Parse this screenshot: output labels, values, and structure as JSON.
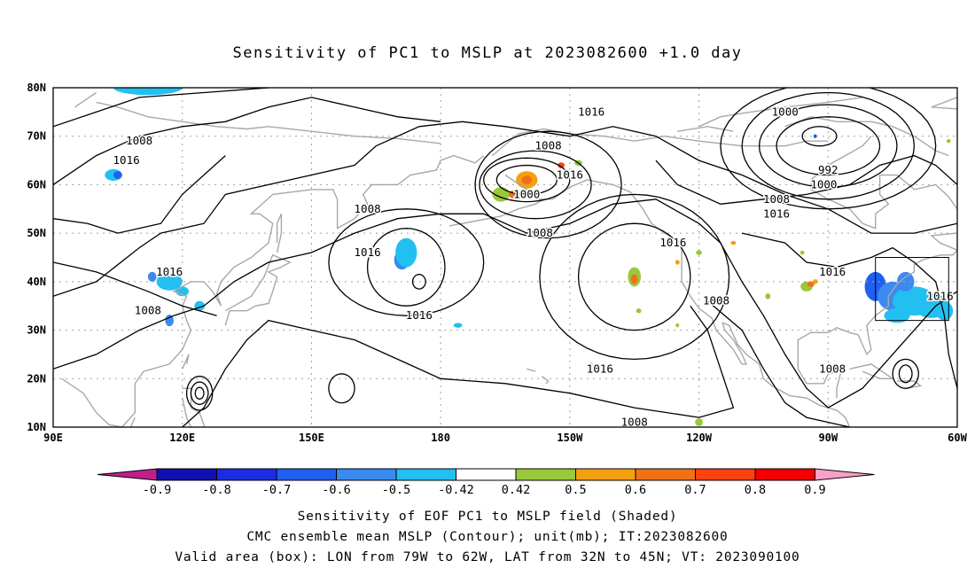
{
  "title": "Sensitivity of PC1 to MSLP at 2023082600 +1.0 day",
  "colors": {
    "background": "#ffffff",
    "coastline": "#a8a8a8",
    "contour": "#000000",
    "grid": "#a0a0a0"
  },
  "chart_data": {
    "type": "heatmap",
    "projection": "cylindrical equidistant",
    "lon_range": [
      "90E",
      "60W"
    ],
    "lat_range": [
      "10N",
      "80N"
    ],
    "grid": true,
    "x_ticks": [
      "90E",
      "120E",
      "150E",
      "180",
      "150W",
      "120W",
      "90W",
      "60W"
    ],
    "y_ticks": [
      "10N",
      "20N",
      "30N",
      "40N",
      "50N",
      "60N",
      "70N",
      "80N"
    ],
    "contour_variable": "MSLP",
    "contour_unit": "mb",
    "contour_labels": [
      {
        "value": "1016",
        "lon": -145,
        "lat": 75
      },
      {
        "value": "1000",
        "lon": -100,
        "lat": 75
      },
      {
        "value": "1008",
        "lon": 110,
        "lat": 69
      },
      {
        "value": "1008",
        "lon": -155,
        "lat": 68
      },
      {
        "value": "1016",
        "lon": 107,
        "lat": 65
      },
      {
        "value": "992",
        "lon": -90,
        "lat": 63
      },
      {
        "value": "1016",
        "lon": -150,
        "lat": 62
      },
      {
        "value": "1000",
        "lon": -91,
        "lat": 60
      },
      {
        "value": "1000",
        "lon": -160,
        "lat": 58
      },
      {
        "value": "1008",
        "lon": -102,
        "lat": 57
      },
      {
        "value": "1016",
        "lon": -102,
        "lat": 54
      },
      {
        "value": "1008",
        "lon": 163,
        "lat": 55
      },
      {
        "value": "1008",
        "lon": -157,
        "lat": 50
      },
      {
        "value": "1016",
        "lon": -126,
        "lat": 48
      },
      {
        "value": "1016",
        "lon": 163,
        "lat": 46
      },
      {
        "value": "1016",
        "lon": 117,
        "lat": 42
      },
      {
        "value": "1016",
        "lon": -89,
        "lat": 42
      },
      {
        "value": "1016",
        "lon": -64,
        "lat": 37
      },
      {
        "value": "1008",
        "lon": -116,
        "lat": 36
      },
      {
        "value": "1008",
        "lon": 112,
        "lat": 34
      },
      {
        "value": "1016",
        "lon": 175,
        "lat": 33
      },
      {
        "value": "1016",
        "lon": -143,
        "lat": 22
      },
      {
        "value": "1008",
        "lon": -89,
        "lat": 22
      },
      {
        "value": "1008",
        "lon": -135,
        "lat": 11
      }
    ],
    "validation_box": {
      "lon": [
        -79,
        -62
      ],
      "lat": [
        32,
        45
      ]
    },
    "colorbar": {
      "labels": [
        "-0.9",
        "-0.8",
        "-0.7",
        "-0.6",
        "-0.5",
        "-0.42",
        "0.42",
        "0.5",
        "0.6",
        "0.7",
        "0.8",
        "0.9"
      ],
      "colors": [
        "#1010b0",
        "#1a2ee0",
        "#2060f0",
        "#3a8af0",
        "#22c0f0",
        "#ffffff",
        "#99c83a",
        "#f5a010",
        "#f07018",
        "#ff4010",
        "#f00000"
      ],
      "low_extend_color": "#c0208c",
      "high_extend_color": "#f8a0c8"
    }
  },
  "captions": [
    "Sensitivity of EOF PC1 to MSLP field (Shaded)",
    "CMC ensemble mean MSLP (Contour); unit(mb); IT:2023082600",
    "Valid area (box): LON from 79W to 62W, LAT from 32N to 45N; VT: 2023090100"
  ]
}
